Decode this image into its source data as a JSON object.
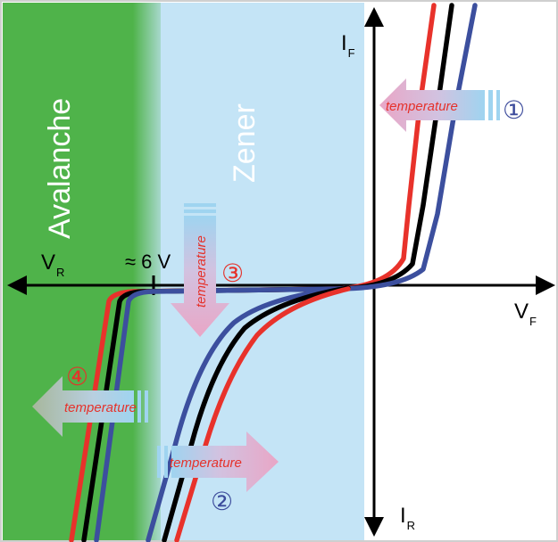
{
  "regions": {
    "avalanche": {
      "label": "Avalanche",
      "color": "#4fb34a"
    },
    "zener": {
      "label": "Zener",
      "color": "#c4e4f6"
    }
  },
  "axes": {
    "forward_current": {
      "main": "I",
      "sub": "F"
    },
    "forward_voltage": {
      "main": "V",
      "sub": "F"
    },
    "reverse_voltage": {
      "main": "V",
      "sub": "R"
    },
    "reverse_current": {
      "main": "I",
      "sub": "R"
    },
    "voltage_threshold": "≈ 6 V"
  },
  "annotations": [
    {
      "id": "1",
      "number": "①",
      "text": "temperature",
      "number_color": "#3b4a9b"
    },
    {
      "id": "2",
      "number": "②",
      "text": "temperature",
      "number_color": "#3b4a9b"
    },
    {
      "id": "3",
      "number": "③",
      "text": "temperature",
      "number_color": "#e5322b"
    },
    {
      "id": "4",
      "number": "④",
      "text": "temperature",
      "number_color": "#e5322b"
    }
  ],
  "curve_colors": {
    "red": "#e8322b",
    "black": "#000000",
    "blue": "#3c4f9e"
  },
  "arrow_colors": {
    "fill": "#e9a6c6",
    "text": "#e5322b"
  }
}
